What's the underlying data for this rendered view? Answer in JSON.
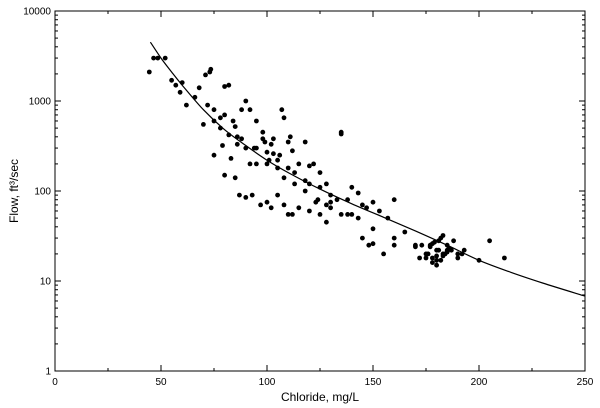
{
  "chart_data": {
    "type": "scatter",
    "title": "",
    "xlabel": "Chloride, mg/L",
    "ylabel": "Flow, ft³/sec",
    "xlim": [
      0,
      250
    ],
    "ylim": [
      1,
      10000
    ],
    "yscale": "log",
    "grid": false,
    "legend": "none",
    "x_ticks": [
      0,
      50,
      100,
      150,
      200,
      250
    ],
    "x_tick_labels": [
      "0",
      "50",
      "100",
      "150",
      "200",
      "250"
    ],
    "y_ticks": [
      1,
      10,
      100,
      1000,
      10000
    ],
    "y_tick_labels": [
      "1",
      "10",
      "100",
      "1000",
      "10000"
    ],
    "series": [
      {
        "kind": "points",
        "x": [
          44.5,
          46.5,
          48.5,
          52,
          55,
          57,
          60,
          59,
          62,
          66,
          70,
          71,
          73,
          73.5,
          75,
          75,
          79,
          80,
          82,
          86,
          88,
          90,
          92,
          94,
          95,
          98,
          99,
          100,
          101,
          102,
          103,
          105,
          106,
          107,
          108,
          110,
          111,
          112,
          115,
          118,
          120,
          122,
          124,
          125,
          128,
          130,
          133,
          135,
          135,
          140,
          143,
          145,
          147,
          150,
          153,
          157,
          160,
          165,
          170,
          173,
          175,
          177,
          178,
          180,
          181,
          182,
          183,
          185,
          187,
          190,
          193,
          200,
          205,
          212,
          72,
          75,
          78,
          80,
          82,
          84,
          85,
          86,
          88,
          90,
          92,
          95,
          98,
          100,
          103,
          105,
          110,
          113,
          118,
          120,
          125,
          130,
          138,
          145,
          150,
          155,
          160,
          170,
          175,
          178,
          180,
          183,
          185,
          188,
          80,
          85,
          87,
          90,
          93,
          97,
          100,
          102,
          105,
          108,
          110,
          112,
          115,
          120,
          125,
          128,
          130,
          135,
          140,
          148,
          176,
          178,
          180,
          182,
          184,
          186,
          177,
          179,
          181,
          183,
          190,
          192,
          68,
          78,
          83,
          95,
          108,
          113,
          118,
          123,
          128,
          138,
          143,
          150,
          160,
          172,
          180,
          185
        ],
        "y": [
          2100,
          3000,
          3000,
          3000,
          1700,
          1500,
          1600,
          1250,
          900,
          1100,
          550,
          1950,
          2100,
          2250,
          600,
          250,
          320,
          1450,
          1500,
          400,
          800,
          1000,
          800,
          300,
          600,
          450,
          350,
          200,
          220,
          330,
          380,
          220,
          250,
          800,
          650,
          350,
          400,
          280,
          200,
          350,
          190,
          200,
          80,
          160,
          120,
          90,
          80,
          450,
          430,
          110,
          95,
          70,
          65,
          75,
          60,
          50,
          80,
          35,
          25,
          25,
          20,
          24,
          26,
          22,
          28,
          30,
          32,
          25,
          22,
          20,
          22,
          17,
          28,
          18,
          900,
          800,
          500,
          700,
          420,
          600,
          520,
          330,
          380,
          300,
          200,
          300,
          380,
          270,
          260,
          180,
          180,
          160,
          130,
          120,
          110,
          65,
          55,
          30,
          26,
          20,
          30,
          24,
          18,
          16,
          17,
          20,
          22,
          28,
          150,
          140,
          90,
          85,
          90,
          70,
          75,
          65,
          90,
          70,
          55,
          55,
          65,
          60,
          55,
          45,
          75,
          55,
          55,
          25,
          20,
          18,
          19,
          17,
          20,
          23,
          25,
          27,
          22,
          19,
          18,
          20,
          1400,
          650,
          230,
          200,
          140,
          120,
          100,
          75,
          70,
          80,
          50,
          38,
          25,
          18,
          15,
          21
        ]
      },
      {
        "kind": "fit-curve",
        "x": [
          45,
          50,
          55,
          60,
          70,
          80,
          90,
          100,
          110,
          125,
          140,
          155,
          170,
          185,
          200,
          215,
          230,
          250
        ],
        "y": [
          4500,
          3000,
          2100,
          1500,
          800,
          480,
          320,
          220,
          160,
          105,
          72,
          51,
          36,
          25,
          17,
          12.5,
          9.5,
          6.8
        ]
      }
    ]
  }
}
